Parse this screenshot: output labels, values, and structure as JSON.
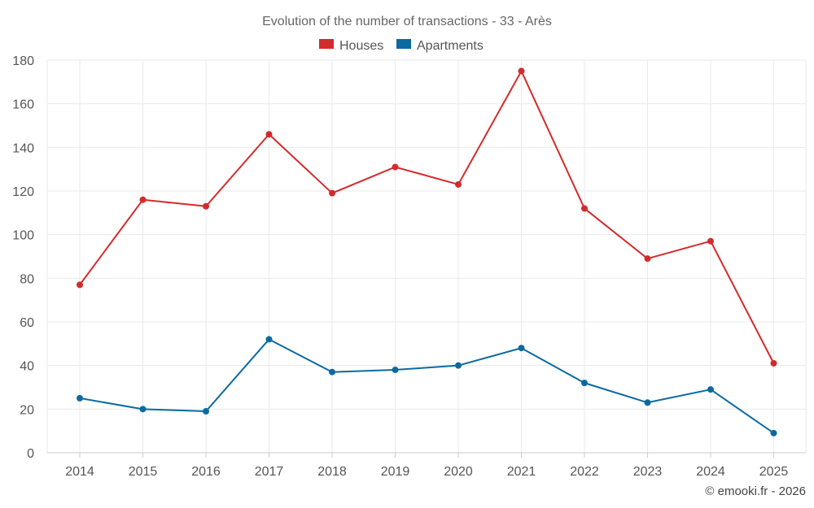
{
  "chart_data": {
    "type": "line",
    "title": "Evolution of the number of transactions - 33 - Arès",
    "categories": [
      "2014",
      "2015",
      "2016",
      "2017",
      "2018",
      "2019",
      "2020",
      "2021",
      "2022",
      "2023",
      "2024",
      "2025"
    ],
    "series": [
      {
        "name": "Houses",
        "color": "#d32b2b",
        "values": [
          77,
          116,
          113,
          146,
          119,
          131,
          123,
          175,
          112,
          89,
          97,
          41
        ]
      },
      {
        "name": "Apartments",
        "color": "#0b6aa0",
        "values": [
          25,
          20,
          19,
          52,
          37,
          38,
          40,
          48,
          32,
          23,
          29,
          9
        ]
      }
    ],
    "ylim": [
      0,
      180
    ],
    "yticks": [
      0,
      20,
      40,
      60,
      80,
      100,
      120,
      140,
      160,
      180
    ],
    "xlabel": "",
    "ylabel": "",
    "legend_position": "top-center",
    "grid": true
  },
  "credit": "© emooki.fr - 2026"
}
